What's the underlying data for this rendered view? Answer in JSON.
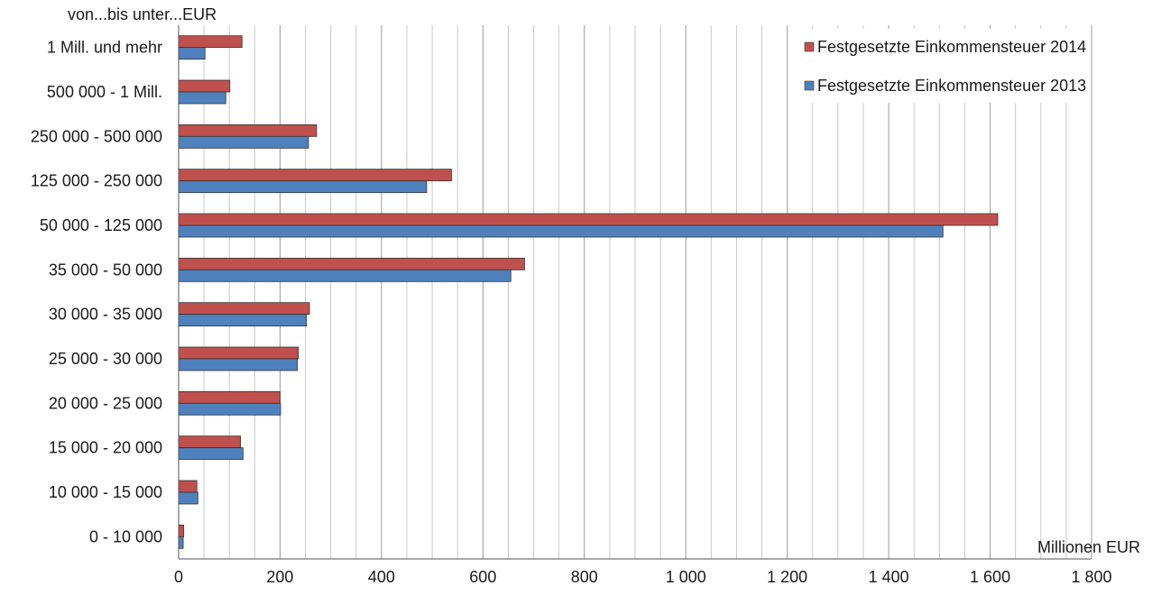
{
  "chart_data": {
    "type": "bar",
    "orientation": "horizontal",
    "title": "",
    "ylabel": "von...bis unter...EUR",
    "xlabel": "Millionen EUR",
    "categories": [
      "0 - 10 000",
      "10 000 - 15 000",
      "15 000 - 20 000",
      "20 000 - 25 000",
      "25 000 - 30 000",
      "30 000 - 35 000",
      "35 000 - 50 000",
      "50 000 - 125 000",
      "125 000 - 250 000",
      "250 000 - 500 000",
      "500 000 - 1 Mill.",
      "1 Mill.  und mehr"
    ],
    "series": [
      {
        "name": "Festgesetzte Einkommensteuer 2014",
        "color": "#c0504d",
        "values": [
          10,
          36,
          122,
          200,
          236,
          258,
          682,
          1615,
          538,
          272,
          101,
          125
        ]
      },
      {
        "name": "Festgesetzte Einkommensteuer 2013",
        "color": "#4f81bd",
        "values": [
          9,
          38,
          127,
          201,
          234,
          252,
          655,
          1507,
          489,
          256,
          93,
          52
        ]
      }
    ],
    "xlim": [
      0,
      1800
    ],
    "xticks": [
      0,
      200,
      400,
      600,
      800,
      1000,
      1200,
      1400,
      1600,
      1800
    ],
    "xtick_labels": [
      "0",
      "200",
      "400",
      "600",
      "800",
      "1 000",
      "1 200",
      "1 400",
      "1 600",
      "1 800"
    ],
    "grid": true,
    "legend_position": "top-right"
  }
}
